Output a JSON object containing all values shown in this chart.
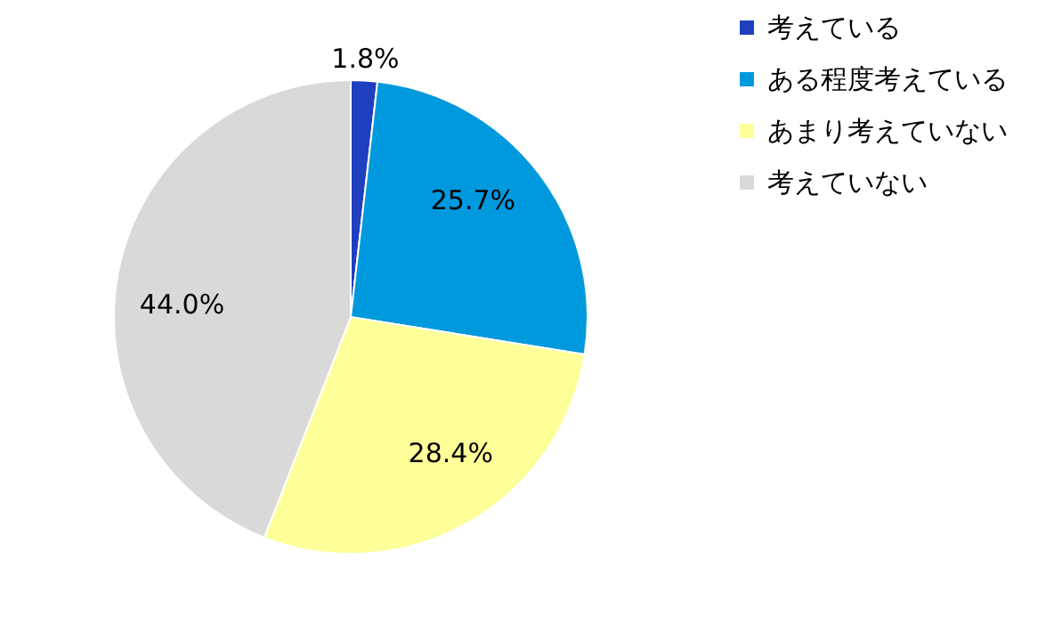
{
  "chart_data": {
    "type": "pie",
    "categories": [
      "考えている",
      "ある程度考えている",
      "あまり考えていない",
      "考えていない"
    ],
    "values": [
      1.8,
      25.7,
      28.4,
      44.0
    ],
    "colors": [
      "#1f3fbf",
      "#0099dd",
      "#ffff99",
      "#d9d9d9"
    ],
    "value_labels": [
      "1.8%",
      "25.7%",
      "28.4%",
      "44.0%"
    ],
    "legend": "right"
  }
}
